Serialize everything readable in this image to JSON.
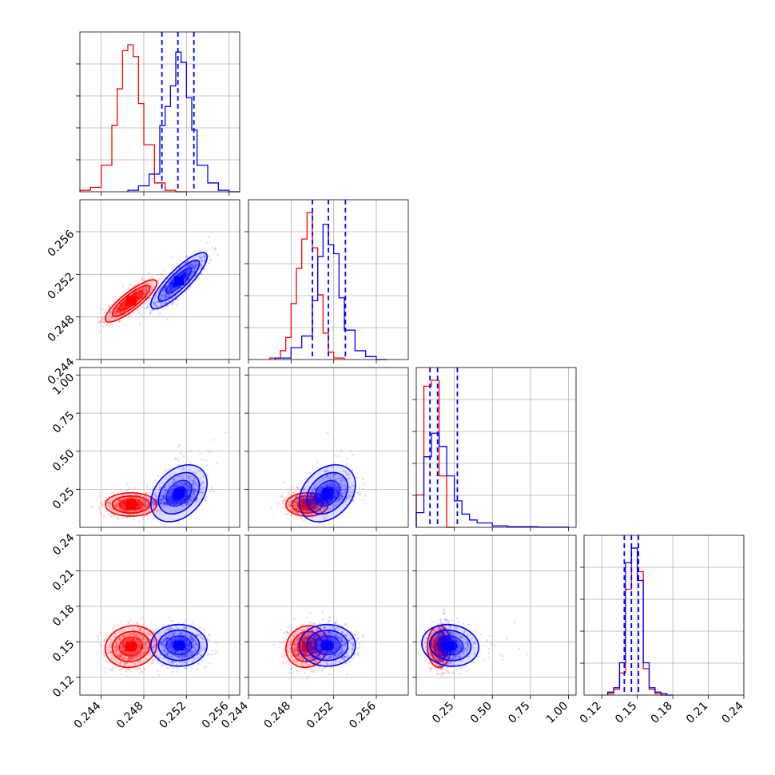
{
  "chart_data": {
    "type": "corner",
    "title": "",
    "grid": true,
    "colors": {
      "red_sample": "#ff0000",
      "blue_sample": "#0000ff"
    },
    "parameters": [
      {
        "range": [
          0.242,
          0.257
        ],
        "ticks": [
          "0.244",
          "0.248",
          "0.252",
          "0.256"
        ]
      },
      {
        "range": [
          0.244,
          0.259
        ],
        "ticks": [
          "0.244",
          "0.248",
          "0.252",
          "0.256"
        ]
      },
      {
        "range": [
          0.0,
          1.05
        ],
        "ticks": [
          "0.25",
          "0.50",
          "0.75",
          "1.00"
        ]
      },
      {
        "range": [
          0.105,
          0.24
        ],
        "ticks": [
          "0.12",
          "0.15",
          "0.18",
          "0.21",
          "0.24"
        ]
      }
    ],
    "y_tick_labels": {
      "row1": [
        "0.244",
        "0.248",
        "0.252",
        "0.256"
      ],
      "row2": [
        "0.25",
        "0.50",
        "0.75",
        "1.00"
      ],
      "row3": [
        "0.12",
        "0.15",
        "0.18",
        "0.21",
        "0.24"
      ]
    },
    "series": [
      {
        "color": "#ff0000",
        "means": [
          0.2468,
          0.2495,
          0.15,
          0.146
        ],
        "stds": [
          0.0011,
          0.0009,
          0.035,
          0.008
        ],
        "correlations": {
          "1-0": 0.85,
          "2-0": 0.0,
          "2-1": 0.0,
          "3-0": 0.1,
          "3-1": 0.1,
          "3-2": 0.0
        },
        "histograms": [
          {
            "edges": [
              0.242,
              0.243,
              0.244,
              0.245,
              0.2455,
              0.246,
              0.2465,
              0.247,
              0.2475,
              0.248,
              0.249,
              0.25,
              0.251,
              0.252
            ],
            "counts": [
              1,
              3,
              18,
              45,
              70,
              96,
              100,
              92,
              60,
              32,
              6,
              1,
              0
            ]
          },
          {
            "edges": [
              0.246,
              0.247,
              0.2475,
              0.248,
              0.2485,
              0.249,
              0.2495,
              0.25,
              0.2505,
              0.251,
              0.2515,
              0.252,
              0.253
            ],
            "counts": [
              1,
              6,
              15,
              38,
              62,
              82,
              100,
              76,
              44,
              18,
              5,
              1
            ]
          },
          {
            "edges": [
              0.0,
              0.05,
              0.1,
              0.15,
              0.2,
              0.25
            ],
            "counts": [
              22,
              96,
              100,
              35,
              0
            ]
          },
          {
            "edges": [
              0.125,
              0.13,
              0.135,
              0.14,
              0.145,
              0.15,
              0.155,
              0.16,
              0.165,
              0.17,
              0.175
            ],
            "counts": [
              1,
              4,
              15,
              72,
              100,
              84,
              18,
              4,
              1,
              0
            ]
          }
        ]
      },
      {
        "color": "#0000ff",
        "means": [
          0.2513,
          0.2514,
          0.215,
          0.147
        ],
        "stds": [
          0.0012,
          0.0012,
          0.085,
          0.008
        ],
        "correlations": {
          "1-0": 0.85,
          "2-0": 0.35,
          "2-1": 0.3,
          "3-0": 0.0,
          "3-1": 0.0,
          "3-2": -0.1
        },
        "histograms": [
          {
            "edges": [
              0.2465,
              0.2475,
              0.2485,
              0.2495,
              0.25,
              0.2505,
              0.251,
              0.2515,
              0.252,
              0.2525,
              0.253,
              0.254,
              0.255,
              0.256,
              0.257
            ],
            "counts": [
              1,
              4,
              12,
              45,
              58,
              72,
              95,
              88,
              64,
              42,
              18,
              6,
              1,
              0
            ]
          },
          {
            "edges": [
              0.2465,
              0.248,
              0.249,
              0.25,
              0.2505,
              0.251,
              0.2515,
              0.252,
              0.2525,
              0.253,
              0.254,
              0.255,
              0.256,
              0.257
            ],
            "counts": [
              1,
              8,
              16,
              40,
              70,
              92,
              78,
              72,
              42,
              20,
              6,
              2,
              0
            ]
          },
          {
            "edges": [
              0.0,
              0.05,
              0.1,
              0.15,
              0.2,
              0.25,
              0.3,
              0.35,
              0.4,
              0.5,
              0.6,
              0.8,
              1.0
            ],
            "counts": [
              10,
              48,
              64,
              55,
              35,
              18,
              9,
              5,
              3,
              1,
              0.4,
              0.1
            ]
          },
          {
            "edges": [
              0.125,
              0.13,
              0.135,
              0.14,
              0.145,
              0.15,
              0.155,
              0.16,
              0.165,
              0.17,
              0.175,
              0.18
            ],
            "counts": [
              2,
              5,
              22,
              90,
              100,
              78,
              22,
              5,
              2,
              1,
              0
            ]
          }
        ],
        "quantiles": [
          [
            0.2497,
            0.2512,
            0.2527
          ],
          [
            0.25,
            0.2515,
            0.2531
          ],
          [
            0.09,
            0.14,
            0.27
          ],
          [
            0.139,
            0.145,
            0.151
          ]
        ]
      }
    ]
  }
}
